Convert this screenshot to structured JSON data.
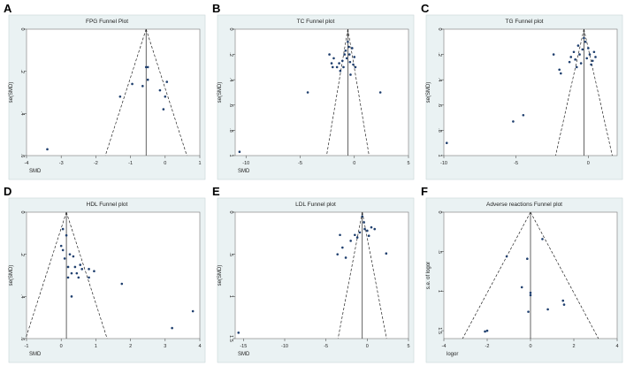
{
  "chart_data": [
    {
      "type": "scatter",
      "panel_label": "A",
      "title": "FPG Funnel Plot",
      "xlabel": "SMD",
      "ylabel": "se(SMD)",
      "xlim": [
        -4,
        1
      ],
      "ylim": [
        0,
        0.6
      ],
      "xticks": [
        -4,
        -3,
        -2,
        -1,
        0,
        1
      ],
      "xtick_labels": [
        "-4",
        "-3",
        "-2",
        "-1",
        "0",
        "1"
      ],
      "yticks": [
        0,
        0.2,
        0.4,
        0.6
      ],
      "ytick_labels": [
        "0",
        ".2",
        ".4",
        ".6"
      ],
      "pooled_effect": -0.55,
      "ci_multiplier": 1.96,
      "points": [
        {
          "x": -3.4,
          "y": 0.57
        },
        {
          "x": -1.3,
          "y": 0.32
        },
        {
          "x": -0.95,
          "y": 0.26
        },
        {
          "x": -0.65,
          "y": 0.27
        },
        {
          "x": -0.55,
          "y": 0.18
        },
        {
          "x": -0.5,
          "y": 0.18
        },
        {
          "x": -0.5,
          "y": 0.24
        },
        {
          "x": -0.15,
          "y": 0.29
        },
        {
          "x": -0.05,
          "y": 0.38
        },
        {
          "x": 0.0,
          "y": 0.32
        },
        {
          "x": 0.05,
          "y": 0.25
        }
      ]
    },
    {
      "type": "scatter",
      "panel_label": "B",
      "title": "TC Funnel plot",
      "xlabel": "SMD",
      "ylabel": "se(SMD)",
      "xlim": [
        -11,
        5
      ],
      "ylim": [
        0,
        1
      ],
      "xticks": [
        -10,
        -5,
        0,
        5
      ],
      "xtick_labels": [
        "-10",
        "-5",
        "0",
        "5"
      ],
      "yticks": [
        0,
        0.2,
        0.4,
        0.6,
        0.8,
        1
      ],
      "ytick_labels": [
        "0",
        ".2",
        ".4",
        ".6",
        ".8",
        "1"
      ],
      "pooled_effect": -0.6,
      "ci_multiplier": 1.96,
      "points": [
        {
          "x": -10.6,
          "y": 0.97
        },
        {
          "x": -4.3,
          "y": 0.5
        },
        {
          "x": 2.4,
          "y": 0.5
        },
        {
          "x": -2.3,
          "y": 0.2
        },
        {
          "x": -2.1,
          "y": 0.27
        },
        {
          "x": -2.0,
          "y": 0.3
        },
        {
          "x": -1.9,
          "y": 0.23
        },
        {
          "x": -1.6,
          "y": 0.3
        },
        {
          "x": -1.4,
          "y": 0.27
        },
        {
          "x": -1.3,
          "y": 0.33
        },
        {
          "x": -1.1,
          "y": 0.25
        },
        {
          "x": -1.0,
          "y": 0.3
        },
        {
          "x": -0.9,
          "y": 0.2
        },
        {
          "x": -0.8,
          "y": 0.17
        },
        {
          "x": -0.7,
          "y": 0.23
        },
        {
          "x": -0.6,
          "y": 0.1
        },
        {
          "x": -0.5,
          "y": 0.14
        },
        {
          "x": -0.45,
          "y": 0.2
        },
        {
          "x": -0.4,
          "y": 0.26
        },
        {
          "x": -0.35,
          "y": 0.36
        },
        {
          "x": -0.2,
          "y": 0.15
        },
        {
          "x": -0.1,
          "y": 0.28
        },
        {
          "x": 0.0,
          "y": 0.22
        },
        {
          "x": 0.1,
          "y": 0.3
        }
      ]
    },
    {
      "type": "scatter",
      "panel_label": "C",
      "title": "TG Funnel plot",
      "xlabel": "",
      "ylabel": "se(SMD)",
      "xlim": [
        -10,
        2
      ],
      "ylim": [
        0,
        1
      ],
      "xticks": [
        -10,
        -5,
        0
      ],
      "xtick_labels": [
        "-10",
        "-5",
        "0"
      ],
      "yticks": [
        0,
        0.2,
        0.4,
        0.6,
        0.8,
        1
      ],
      "ytick_labels": [
        "0",
        ".2",
        ".4",
        ".6",
        ".8",
        "1"
      ],
      "pooled_effect": -0.3,
      "ci_multiplier": 1.96,
      "points": [
        {
          "x": -9.8,
          "y": 0.9
        },
        {
          "x": -5.2,
          "y": 0.73
        },
        {
          "x": -4.5,
          "y": 0.68
        },
        {
          "x": -2.4,
          "y": 0.2
        },
        {
          "x": -2.0,
          "y": 0.32
        },
        {
          "x": -1.9,
          "y": 0.35
        },
        {
          "x": -1.3,
          "y": 0.26
        },
        {
          "x": -1.2,
          "y": 0.22
        },
        {
          "x": -1.0,
          "y": 0.18
        },
        {
          "x": -0.9,
          "y": 0.24
        },
        {
          "x": -0.8,
          "y": 0.3
        },
        {
          "x": -0.7,
          "y": 0.13
        },
        {
          "x": -0.6,
          "y": 0.2
        },
        {
          "x": -0.5,
          "y": 0.27
        },
        {
          "x": -0.4,
          "y": 0.16
        },
        {
          "x": -0.3,
          "y": 0.07
        },
        {
          "x": -0.2,
          "y": 0.1
        },
        {
          "x": -0.1,
          "y": 0.23
        },
        {
          "x": 0.0,
          "y": 0.15
        },
        {
          "x": 0.1,
          "y": 0.2
        },
        {
          "x": 0.2,
          "y": 0.28
        },
        {
          "x": 0.3,
          "y": 0.25
        },
        {
          "x": 0.4,
          "y": 0.18
        },
        {
          "x": 0.5,
          "y": 0.22
        }
      ]
    },
    {
      "type": "scatter",
      "panel_label": "D",
      "title": "HDL Funnel plot",
      "xlabel": "SMD",
      "ylabel": "se(SMD)",
      "xlim": [
        -1,
        4
      ],
      "ylim": [
        0,
        0.6
      ],
      "xticks": [
        -1,
        0,
        1,
        2,
        3,
        4
      ],
      "xtick_labels": [
        "-1",
        "0",
        "1",
        "2",
        "3",
        "4"
      ],
      "yticks": [
        0,
        0.2,
        0.4,
        0.6
      ],
      "ytick_labels": [
        "0",
        ".2",
        ".4",
        ".6"
      ],
      "pooled_effect": 0.15,
      "ci_multiplier": 1.96,
      "points": [
        {
          "x": 0.05,
          "y": 0.08
        },
        {
          "x": 0.15,
          "y": 0.11
        },
        {
          "x": 0.0,
          "y": 0.16
        },
        {
          "x": 0.05,
          "y": 0.18
        },
        {
          "x": 0.1,
          "y": 0.22
        },
        {
          "x": 0.2,
          "y": 0.26
        },
        {
          "x": 0.25,
          "y": 0.2
        },
        {
          "x": 0.35,
          "y": 0.21
        },
        {
          "x": 0.4,
          "y": 0.26
        },
        {
          "x": 0.45,
          "y": 0.29
        },
        {
          "x": 0.55,
          "y": 0.25
        },
        {
          "x": 0.6,
          "y": 0.27
        },
        {
          "x": 0.8,
          "y": 0.27
        },
        {
          "x": 0.95,
          "y": 0.28
        },
        {
          "x": 0.8,
          "y": 0.31
        },
        {
          "x": 0.5,
          "y": 0.31
        },
        {
          "x": 0.3,
          "y": 0.29
        },
        {
          "x": 0.2,
          "y": 0.31
        },
        {
          "x": 0.3,
          "y": 0.4
        },
        {
          "x": 1.75,
          "y": 0.34
        },
        {
          "x": 3.2,
          "y": 0.55
        },
        {
          "x": 3.8,
          "y": 0.47
        }
      ]
    },
    {
      "type": "scatter",
      "panel_label": "E",
      "title": "LDL Funnel plot",
      "xlabel": "SMD",
      "ylabel": "se(SMD)",
      "xlim": [
        -16,
        5
      ],
      "ylim": [
        0,
        1.5
      ],
      "xticks": [
        -15,
        -10,
        -5,
        0,
        5
      ],
      "xtick_labels": [
        "-15",
        "-10",
        "-5",
        "0",
        "5"
      ],
      "yticks": [
        0,
        0.5,
        1,
        1.5
      ],
      "ytick_labels": [
        "0",
        ".5",
        "1",
        "1.5"
      ],
      "pooled_effect": -0.6,
      "ci_multiplier": 1.96,
      "points": [
        {
          "x": -15.6,
          "y": 1.43
        },
        {
          "x": -3.3,
          "y": 0.27
        },
        {
          "x": -3.0,
          "y": 0.42
        },
        {
          "x": -3.6,
          "y": 0.5
        },
        {
          "x": -2.6,
          "y": 0.54
        },
        {
          "x": -2.0,
          "y": 0.34
        },
        {
          "x": -1.5,
          "y": 0.27
        },
        {
          "x": -1.2,
          "y": 0.3
        },
        {
          "x": -0.9,
          "y": 0.24
        },
        {
          "x": -0.6,
          "y": 0.05
        },
        {
          "x": -0.4,
          "y": 0.12
        },
        {
          "x": -0.3,
          "y": 0.2
        },
        {
          "x": 0.0,
          "y": 0.22
        },
        {
          "x": 0.2,
          "y": 0.28
        },
        {
          "x": 0.5,
          "y": 0.18
        },
        {
          "x": 0.9,
          "y": 0.2
        },
        {
          "x": 2.3,
          "y": 0.49
        }
      ]
    },
    {
      "type": "scatter",
      "panel_label": "F",
      "title": "Adverse reactions Funnel plot",
      "xlabel": "logor",
      "ylabel": "s.e. of logor",
      "xlim": [
        -4,
        4
      ],
      "ylim": [
        0,
        1.6
      ],
      "xticks": [
        -4,
        -2,
        0,
        2,
        4
      ],
      "xtick_labels": [
        "-4",
        "-2",
        "0",
        "2",
        "4"
      ],
      "yticks": [
        0,
        0.5,
        1,
        1.5
      ],
      "ytick_labels": [
        "0",
        ".5",
        "1",
        "1.5"
      ],
      "pooled_effect": 0.0,
      "ci_multiplier": 1.96,
      "points": [
        {
          "x": -2.1,
          "y": 1.51
        },
        {
          "x": -2.0,
          "y": 1.5
        },
        {
          "x": -1.1,
          "y": 0.56
        },
        {
          "x": -0.4,
          "y": 0.95
        },
        {
          "x": -0.15,
          "y": 0.59
        },
        {
          "x": -0.1,
          "y": 1.26
        },
        {
          "x": 0.0,
          "y": 1.02
        },
        {
          "x": 0.0,
          "y": 1.05
        },
        {
          "x": 0.55,
          "y": 0.34
        },
        {
          "x": 0.8,
          "y": 1.23
        },
        {
          "x": 1.5,
          "y": 1.12
        },
        {
          "x": 1.55,
          "y": 1.17
        }
      ]
    }
  ]
}
